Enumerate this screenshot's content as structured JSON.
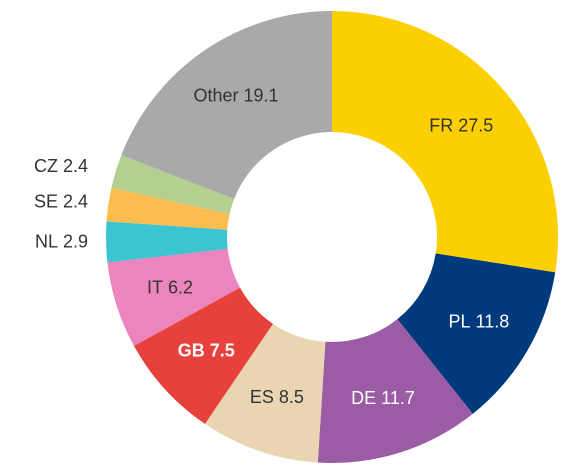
{
  "chart_data": {
    "type": "donut",
    "categories": [
      "FR",
      "PL",
      "DE",
      "ES",
      "GB",
      "IT",
      "NL",
      "SE",
      "CZ",
      "Other"
    ],
    "values": [
      27.5,
      11.8,
      11.7,
      8.5,
      7.5,
      6.2,
      2.9,
      2.4,
      2.4,
      19.1
    ],
    "colors": [
      "#fcd000",
      "#003a7d",
      "#9b5ba5",
      "#e9d5b1",
      "#e8413c",
      "#ec84bd",
      "#3cc5d0",
      "#fcbc4f",
      "#b4d08e",
      "#a9a9a9"
    ],
    "highlight": "GB"
  }
}
